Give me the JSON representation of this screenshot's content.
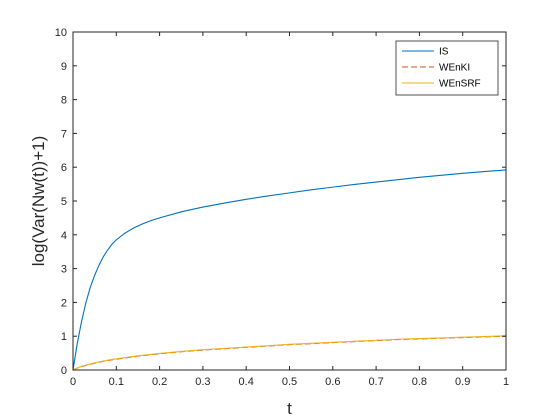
{
  "chart_data": {
    "type": "line",
    "title": "",
    "xlabel": "t",
    "ylabel": "log(Var(Nw(t))+1)",
    "xlim": [
      0,
      1
    ],
    "ylim": [
      0,
      10
    ],
    "xticks": [
      0,
      0.1,
      0.2,
      0.3,
      0.4,
      0.5,
      0.6,
      0.7,
      0.8,
      0.9,
      1
    ],
    "yticks": [
      0,
      1,
      2,
      3,
      4,
      5,
      6,
      7,
      8,
      9,
      10
    ],
    "xtick_labels": [
      "0",
      "0.1",
      "0.2",
      "0.3",
      "0.4",
      "0.5",
      "0.6",
      "0.7",
      "0.8",
      "0.9",
      "1"
    ],
    "ytick_labels": [
      "0",
      "1",
      "2",
      "3",
      "4",
      "5",
      "6",
      "7",
      "8",
      "9",
      "10"
    ],
    "grid": false,
    "legend_position": "top-right",
    "series": [
      {
        "name": "IS",
        "color": "#0072BD",
        "dash": "solid",
        "x": [
          0,
          0.005,
          0.01,
          0.02,
          0.03,
          0.04,
          0.05,
          0.06,
          0.07,
          0.08,
          0.09,
          0.1,
          0.12,
          0.14,
          0.16,
          0.18,
          0.2,
          0.25,
          0.3,
          0.35,
          0.4,
          0.45,
          0.5,
          0.55,
          0.6,
          0.65,
          0.7,
          0.75,
          0.8,
          0.85,
          0.9,
          0.95,
          1.0
        ],
        "y": [
          0,
          0.4,
          0.8,
          1.45,
          2.0,
          2.45,
          2.8,
          3.1,
          3.35,
          3.55,
          3.72,
          3.85,
          4.05,
          4.2,
          4.32,
          4.42,
          4.5,
          4.68,
          4.82,
          4.94,
          5.05,
          5.15,
          5.24,
          5.33,
          5.41,
          5.49,
          5.56,
          5.63,
          5.7,
          5.76,
          5.82,
          5.87,
          5.92
        ]
      },
      {
        "name": "WEnKI",
        "color": "#D95319",
        "dash": "dashed",
        "x": [
          0,
          0.01,
          0.02,
          0.04,
          0.06,
          0.08,
          0.1,
          0.15,
          0.2,
          0.25,
          0.3,
          0.35,
          0.4,
          0.45,
          0.5,
          0.55,
          0.6,
          0.65,
          0.7,
          0.75,
          0.8,
          0.85,
          0.9,
          0.95,
          1.0
        ],
        "y": [
          0,
          0.06,
          0.1,
          0.17,
          0.23,
          0.28,
          0.32,
          0.41,
          0.48,
          0.54,
          0.59,
          0.63,
          0.67,
          0.71,
          0.75,
          0.78,
          0.81,
          0.84,
          0.87,
          0.9,
          0.92,
          0.94,
          0.96,
          0.98,
          1.0
        ]
      },
      {
        "name": "WEnSRF",
        "color": "#EDB120",
        "dash": "solid",
        "x": [
          0,
          0.01,
          0.02,
          0.04,
          0.06,
          0.08,
          0.1,
          0.15,
          0.2,
          0.25,
          0.3,
          0.35,
          0.4,
          0.45,
          0.5,
          0.55,
          0.6,
          0.65,
          0.7,
          0.75,
          0.8,
          0.85,
          0.9,
          0.95,
          1.0
        ],
        "y": [
          0,
          0.06,
          0.11,
          0.18,
          0.24,
          0.29,
          0.33,
          0.42,
          0.49,
          0.55,
          0.6,
          0.64,
          0.68,
          0.72,
          0.76,
          0.79,
          0.82,
          0.85,
          0.88,
          0.91,
          0.93,
          0.95,
          0.97,
          0.99,
          1.01
        ]
      }
    ]
  }
}
